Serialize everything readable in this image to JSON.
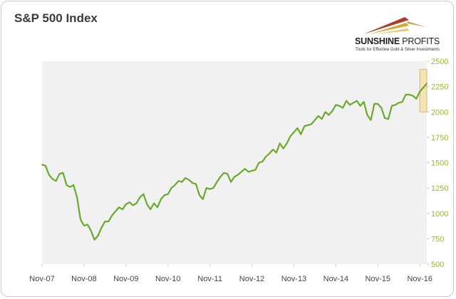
{
  "title": "S&P 500 Index",
  "logo": {
    "name_bold": "SUNSHINE",
    "name_light": " PROFITS",
    "tagline": "Tools for Effective Gold & Silver Investments"
  },
  "colors": {
    "line": "#6aaa2a",
    "plot_bg": "#f1f1f1",
    "axis_text": "#a0b040",
    "highlight_fill": "#f5dca0",
    "highlight_stroke": "#e0b860"
  },
  "chart_data": {
    "type": "line",
    "title": "S&P 500 Index",
    "xlabel": "",
    "ylabel": "",
    "x_tick_labels": [
      "Nov-07",
      "Nov-08",
      "Nov-09",
      "Nov-10",
      "Nov-11",
      "Nov-12",
      "Nov-13",
      "Nov-14",
      "Nov-15",
      "Nov-16"
    ],
    "xlim": [
      "2007-11",
      "2017-01"
    ],
    "ylim": [
      500,
      2500
    ],
    "y_ticks": [
      500,
      750,
      1000,
      1250,
      1500,
      1750,
      2000,
      2250,
      2500
    ],
    "y_axis_position": "right",
    "grid": false,
    "legend": "none",
    "highlight": {
      "x_start": "2016-11",
      "x_end": "2017-01",
      "y_start": 2000,
      "y_end": 2420
    },
    "series": [
      {
        "name": "",
        "x": [
          "2007-11",
          "2007-12",
          "2008-01",
          "2008-02",
          "2008-03",
          "2008-04",
          "2008-05",
          "2008-06",
          "2008-07",
          "2008-08",
          "2008-09",
          "2008-10",
          "2008-11",
          "2008-12",
          "2009-01",
          "2009-02",
          "2009-03",
          "2009-04",
          "2009-05",
          "2009-06",
          "2009-07",
          "2009-08",
          "2009-09",
          "2009-10",
          "2009-11",
          "2009-12",
          "2010-01",
          "2010-02",
          "2010-03",
          "2010-04",
          "2010-05",
          "2010-06",
          "2010-07",
          "2010-08",
          "2010-09",
          "2010-10",
          "2010-11",
          "2010-12",
          "2011-01",
          "2011-02",
          "2011-03",
          "2011-04",
          "2011-05",
          "2011-06",
          "2011-07",
          "2011-08",
          "2011-09",
          "2011-10",
          "2011-11",
          "2011-12",
          "2012-01",
          "2012-02",
          "2012-03",
          "2012-04",
          "2012-05",
          "2012-06",
          "2012-07",
          "2012-08",
          "2012-09",
          "2012-10",
          "2012-11",
          "2012-12",
          "2013-01",
          "2013-02",
          "2013-03",
          "2013-04",
          "2013-05",
          "2013-06",
          "2013-07",
          "2013-08",
          "2013-09",
          "2013-10",
          "2013-11",
          "2013-12",
          "2014-01",
          "2014-02",
          "2014-03",
          "2014-04",
          "2014-05",
          "2014-06",
          "2014-07",
          "2014-08",
          "2014-09",
          "2014-10",
          "2014-11",
          "2014-12",
          "2015-01",
          "2015-02",
          "2015-03",
          "2015-04",
          "2015-05",
          "2015-06",
          "2015-07",
          "2015-08",
          "2015-09",
          "2015-10",
          "2015-11",
          "2015-12",
          "2016-01",
          "2016-02",
          "2016-03",
          "2016-04",
          "2016-05",
          "2016-06",
          "2016-07",
          "2016-08",
          "2016-09",
          "2016-10",
          "2016-11",
          "2016-12",
          "2017-01"
        ],
        "values": [
          1480,
          1470,
          1380,
          1340,
          1320,
          1390,
          1400,
          1280,
          1260,
          1280,
          1160,
          940,
          880,
          890,
          830,
          740,
          780,
          860,
          920,
          920,
          980,
          1020,
          1060,
          1040,
          1090,
          1110,
          1080,
          1100,
          1160,
          1190,
          1090,
          1040,
          1100,
          1060,
          1140,
          1180,
          1190,
          1250,
          1280,
          1320,
          1310,
          1350,
          1330,
          1300,
          1290,
          1180,
          1140,
          1250,
          1240,
          1250,
          1310,
          1360,
          1400,
          1390,
          1310,
          1360,
          1380,
          1410,
          1440,
          1410,
          1420,
          1430,
          1500,
          1510,
          1560,
          1590,
          1630,
          1600,
          1690,
          1640,
          1690,
          1760,
          1800,
          1840,
          1780,
          1860,
          1870,
          1880,
          1920,
          1960,
          1930,
          2000,
          1970,
          2010,
          2070,
          2060,
          2040,
          2110,
          2070,
          2090,
          2110,
          2060,
          2100,
          1970,
          1920,
          2080,
          2080,
          2040,
          1940,
          1930,
          2060,
          2070,
          2090,
          2100,
          2170,
          2170,
          2160,
          2130,
          2200,
          2240,
          2280
        ]
      }
    ]
  }
}
